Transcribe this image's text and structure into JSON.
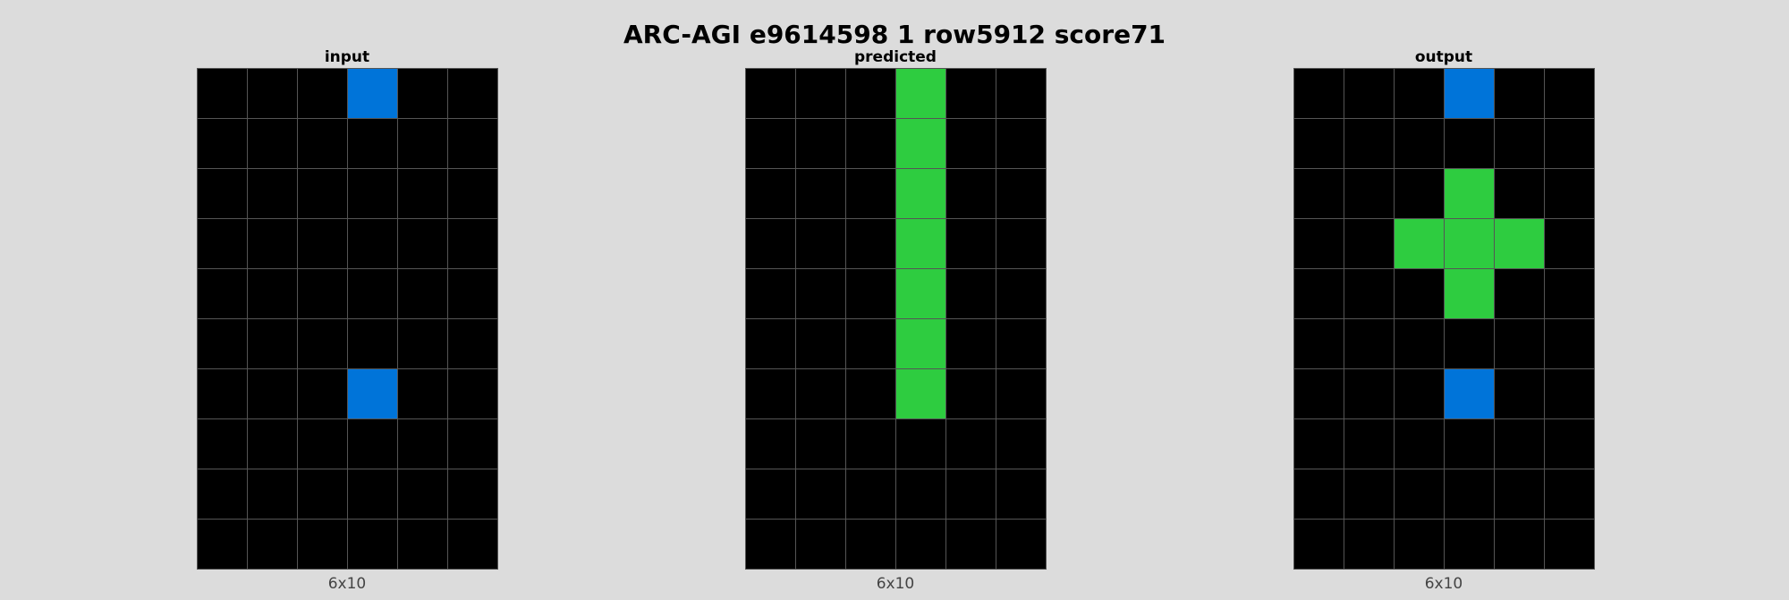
{
  "title": "ARC-AGI e9614598 1 row5912 score71",
  "palette": {
    "0": "#000000",
    "1": "#0074d9",
    "3": "#2ecc40"
  },
  "panels": [
    {
      "label": "input",
      "dims": "6x10",
      "grid": [
        [
          0,
          0,
          0,
          1,
          0,
          0
        ],
        [
          0,
          0,
          0,
          0,
          0,
          0
        ],
        [
          0,
          0,
          0,
          0,
          0,
          0
        ],
        [
          0,
          0,
          0,
          0,
          0,
          0
        ],
        [
          0,
          0,
          0,
          0,
          0,
          0
        ],
        [
          0,
          0,
          0,
          0,
          0,
          0
        ],
        [
          0,
          0,
          0,
          1,
          0,
          0
        ],
        [
          0,
          0,
          0,
          0,
          0,
          0
        ],
        [
          0,
          0,
          0,
          0,
          0,
          0
        ],
        [
          0,
          0,
          0,
          0,
          0,
          0
        ]
      ]
    },
    {
      "label": "predicted",
      "dims": "6x10",
      "grid": [
        [
          0,
          0,
          0,
          3,
          0,
          0
        ],
        [
          0,
          0,
          0,
          3,
          0,
          0
        ],
        [
          0,
          0,
          0,
          3,
          0,
          0
        ],
        [
          0,
          0,
          0,
          3,
          0,
          0
        ],
        [
          0,
          0,
          0,
          3,
          0,
          0
        ],
        [
          0,
          0,
          0,
          3,
          0,
          0
        ],
        [
          0,
          0,
          0,
          3,
          0,
          0
        ],
        [
          0,
          0,
          0,
          0,
          0,
          0
        ],
        [
          0,
          0,
          0,
          0,
          0,
          0
        ],
        [
          0,
          0,
          0,
          0,
          0,
          0
        ]
      ]
    },
    {
      "label": "output",
      "dims": "6x10",
      "grid": [
        [
          0,
          0,
          0,
          1,
          0,
          0
        ],
        [
          0,
          0,
          0,
          0,
          0,
          0
        ],
        [
          0,
          0,
          0,
          3,
          0,
          0
        ],
        [
          0,
          0,
          3,
          3,
          3,
          0
        ],
        [
          0,
          0,
          0,
          3,
          0,
          0
        ],
        [
          0,
          0,
          0,
          0,
          0,
          0
        ],
        [
          0,
          0,
          0,
          1,
          0,
          0
        ],
        [
          0,
          0,
          0,
          0,
          0,
          0
        ],
        [
          0,
          0,
          0,
          0,
          0,
          0
        ],
        [
          0,
          0,
          0,
          0,
          0,
          0
        ]
      ]
    }
  ]
}
